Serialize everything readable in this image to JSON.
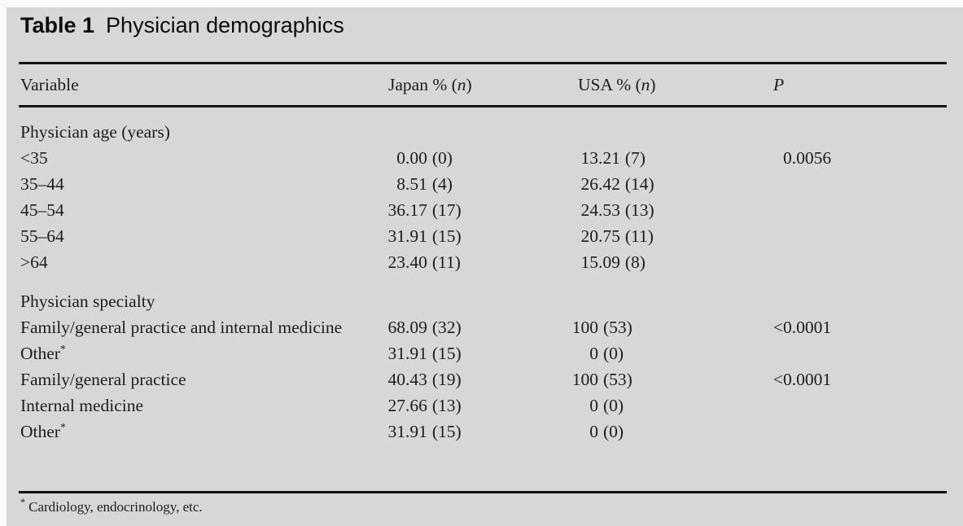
{
  "title": {
    "label": "Table 1",
    "text": "Physician demographics"
  },
  "header": {
    "variable": "Variable",
    "japan": {
      "pre": "Japan % (",
      "n": "n",
      "post": ")"
    },
    "usa": {
      "pre": "USA % (",
      "n": "n",
      "post": ")"
    },
    "p": "P"
  },
  "rows": [
    {
      "kind": "section",
      "label": "Physician age (years)"
    },
    {
      "kind": "data",
      "label": "<35",
      "japan": {
        "i": "0",
        "f": ".00",
        "n": "(0)"
      },
      "usa": {
        "i": "13",
        "f": ".21",
        "n": "(7)"
      },
      "p": {
        "lt": "",
        "v": "0.0056"
      }
    },
    {
      "kind": "data",
      "label": "35–44",
      "japan": {
        "i": "8",
        "f": ".51",
        "n": "(4)"
      },
      "usa": {
        "i": "26",
        "f": ".42",
        "n": "(14)"
      }
    },
    {
      "kind": "data",
      "label": "45–54",
      "japan": {
        "i": "36",
        "f": ".17",
        "n": "(17)"
      },
      "usa": {
        "i": "24",
        "f": ".53",
        "n": "(13)"
      }
    },
    {
      "kind": "data",
      "label": "55–64",
      "japan": {
        "i": "31",
        "f": ".91",
        "n": "(15)"
      },
      "usa": {
        "i": "20",
        "f": ".75",
        "n": "(11)"
      }
    },
    {
      "kind": "data",
      "label": ">64",
      "japan": {
        "i": "23",
        "f": ".40",
        "n": "(11)"
      },
      "usa": {
        "i": "15",
        "f": ".09",
        "n": "(8)"
      }
    },
    {
      "kind": "section",
      "label": "Physician specialty"
    },
    {
      "kind": "data",
      "label": "Family/general practice and internal medicine",
      "japan": {
        "i": "68",
        "f": ".09",
        "n": "(32)"
      },
      "usa": {
        "i": "100",
        "f": "",
        "n": "(53)"
      },
      "p": {
        "lt": "<",
        "v": "0.0001"
      }
    },
    {
      "kind": "data",
      "label": "Other",
      "sup": "*",
      "japan": {
        "i": "31",
        "f": ".91",
        "n": "(15)"
      },
      "usa": {
        "i": "0",
        "f": "",
        "n": "(0)"
      }
    },
    {
      "kind": "data",
      "label": "Family/general practice",
      "japan": {
        "i": "40",
        "f": ".43",
        "n": "(19)"
      },
      "usa": {
        "i": "100",
        "f": "",
        "n": "(53)"
      },
      "p": {
        "lt": "<",
        "v": "0.0001"
      }
    },
    {
      "kind": "data",
      "label": "Internal medicine",
      "japan": {
        "i": "27",
        "f": ".66",
        "n": "(13)"
      },
      "usa": {
        "i": "0",
        "f": "",
        "n": "(0)"
      }
    },
    {
      "kind": "data",
      "label": "Other",
      "sup": "*",
      "japan": {
        "i": "31",
        "f": ".91",
        "n": "(15)"
      },
      "usa": {
        "i": "0",
        "f": "",
        "n": "(0)"
      }
    }
  ],
  "footnote": {
    "marker": "*",
    "text": "Cardiology, endocrinology, etc."
  },
  "colors": {
    "background": "#d7d7d7",
    "text": "#1d1d1d",
    "rule": "#131313"
  }
}
